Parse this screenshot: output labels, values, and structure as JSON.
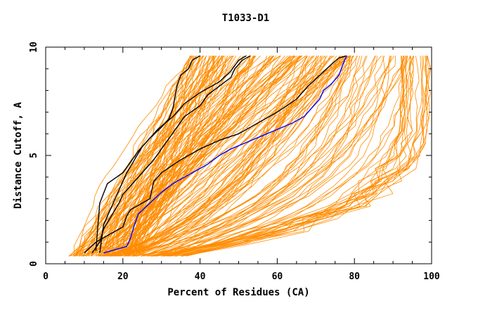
{
  "chart_data": {
    "type": "line",
    "title": "T1033-D1",
    "xlabel": "Percent of Residues (CA)",
    "ylabel": "Distance Cutoff, A",
    "xlim": [
      0,
      100
    ],
    "ylim": [
      0,
      10
    ],
    "x_ticks": [
      0,
      20,
      40,
      60,
      80,
      100
    ],
    "y_ticks": [
      0,
      5,
      10
    ],
    "grid": false,
    "legend": "none",
    "colors": {
      "models": "#ff8c00",
      "highlight_black": "#000000",
      "highlight_blue": "#0000ff",
      "axes": "#000000"
    },
    "series": [
      {
        "role": "black",
        "points": [
          [
            14,
            0.5
          ],
          [
            15,
            1.8
          ],
          [
            18,
            3.0
          ],
          [
            20,
            3.8
          ],
          [
            21,
            4.2
          ],
          [
            23,
            4.8
          ],
          [
            25,
            5.4
          ],
          [
            27,
            5.8
          ],
          [
            29,
            6.2
          ],
          [
            33,
            6.8
          ],
          [
            36,
            7.4
          ],
          [
            40,
            7.9
          ],
          [
            45,
            8.4
          ],
          [
            48,
            8.9
          ],
          [
            50,
            9.4
          ],
          [
            52,
            9.6
          ]
        ]
      },
      {
        "role": "black",
        "points": [
          [
            13,
            0.6
          ],
          [
            14,
            2.8
          ],
          [
            16,
            3.7
          ],
          [
            20,
            4.2
          ],
          [
            22,
            4.7
          ],
          [
            24,
            5.2
          ],
          [
            27,
            5.8
          ],
          [
            30,
            6.3
          ],
          [
            32,
            6.7
          ],
          [
            33,
            7.2
          ],
          [
            34,
            8.2
          ],
          [
            35,
            8.7
          ],
          [
            37,
            9.0
          ],
          [
            38,
            9.4
          ],
          [
            40,
            9.6
          ]
        ]
      },
      {
        "role": "black",
        "points": [
          [
            12,
            0.5
          ],
          [
            14,
            1.0
          ],
          [
            15,
            1.6
          ],
          [
            17,
            2.2
          ],
          [
            19,
            2.8
          ],
          [
            20,
            3.2
          ],
          [
            22,
            3.6
          ],
          [
            24,
            4.0
          ],
          [
            26,
            4.4
          ],
          [
            28,
            4.8
          ],
          [
            30,
            5.3
          ],
          [
            32,
            5.8
          ],
          [
            34,
            6.3
          ],
          [
            36,
            6.8
          ],
          [
            40,
            7.3
          ],
          [
            42,
            7.8
          ],
          [
            45,
            8.2
          ],
          [
            48,
            8.6
          ],
          [
            49,
            9.0
          ],
          [
            51,
            9.4
          ],
          [
            53,
            9.6
          ]
        ]
      },
      {
        "role": "black",
        "points": [
          [
            10,
            0.5
          ],
          [
            13,
            1.0
          ],
          [
            20,
            1.7
          ],
          [
            21,
            2.2
          ],
          [
            22,
            2.5
          ],
          [
            27,
            3.0
          ],
          [
            28,
            3.8
          ],
          [
            30,
            4.2
          ],
          [
            35,
            4.8
          ],
          [
            40,
            5.3
          ],
          [
            45,
            5.7
          ],
          [
            50,
            6.0
          ],
          [
            55,
            6.5
          ],
          [
            60,
            7.0
          ],
          [
            65,
            7.6
          ],
          [
            68,
            8.2
          ],
          [
            71,
            8.7
          ],
          [
            74,
            9.2
          ],
          [
            76,
            9.5
          ],
          [
            78,
            9.6
          ]
        ]
      },
      {
        "role": "blue",
        "points": [
          [
            15,
            0.5
          ],
          [
            21,
            0.8
          ],
          [
            22,
            1.2
          ],
          [
            23,
            1.8
          ],
          [
            24,
            2.3
          ],
          [
            27,
            2.8
          ],
          [
            30,
            3.3
          ],
          [
            33,
            3.7
          ],
          [
            36,
            4.0
          ],
          [
            39,
            4.3
          ],
          [
            42,
            4.6
          ],
          [
            45,
            5.0
          ],
          [
            48,
            5.3
          ],
          [
            52,
            5.6
          ],
          [
            56,
            5.9
          ],
          [
            60,
            6.2
          ],
          [
            64,
            6.5
          ],
          [
            67,
            6.8
          ],
          [
            69,
            7.2
          ],
          [
            71,
            7.6
          ],
          [
            72,
            8.0
          ],
          [
            74,
            8.3
          ],
          [
            76,
            8.7
          ],
          [
            77,
            9.2
          ],
          [
            78,
            9.6
          ]
        ]
      }
    ]
  }
}
